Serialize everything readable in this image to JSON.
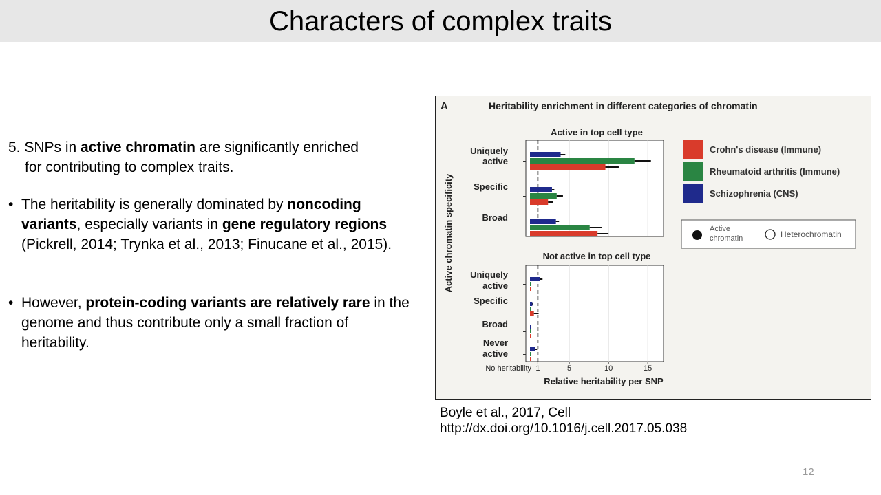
{
  "title": "Characters of complex traits",
  "point5": {
    "prefix": "5. SNPs in ",
    "bold": "active chromatin",
    "suffix": " are significantly enriched",
    "line2": "for contributing to complex traits."
  },
  "bullet1": {
    "marker": "•",
    "t1": "The heritability is generally dominated by ",
    "b1": "noncoding variants",
    "t2": ", especially variants in ",
    "b2": "gene regulatory regions",
    "t3": " (Pickrell, 2014; Trynka et al., 2013; Finucane et al., 2015)."
  },
  "bullet2": {
    "marker": "•",
    "t1": "However, ",
    "b1": "protein-coding variants are relatively rare",
    "t2": " in the genome and thus contribute only a small fraction of heritability."
  },
  "citation": {
    "line1": "Boyle et al., 2017, Cell",
    "line2": "http://dx.doi.org/10.1016/j.cell.2017.05.038"
  },
  "page_number": "12",
  "chart_data": {
    "type": "bar",
    "orientation": "horizontal",
    "panel_letter": "A",
    "title": "Heritability enrichment in different categories of chromatin",
    "ylabel": "Active chromatin specificity",
    "xlabel": "Relative heritability per SNP",
    "xlim": [
      0,
      17
    ],
    "x_ticks": [
      1,
      5,
      10,
      15
    ],
    "x_tick_labels": [
      "1",
      "5",
      "10",
      "15"
    ],
    "x_zero_label": "No heritability",
    "reference_line": 1,
    "grid": true,
    "legend_position": "right",
    "series_colors": [
      "#d93b2b",
      "#2a8543",
      "#1f2a8c"
    ],
    "series": [
      {
        "name": "Crohn's disease (Immune)"
      },
      {
        "name": "Rheumatoid arthritis (Immune)"
      },
      {
        "name": "Schizophrenia (CNS)"
      }
    ],
    "marker_legend": [
      {
        "label": "Active chromatin",
        "filled": true
      },
      {
        "label": "Heterochromatin",
        "filled": false
      }
    ],
    "panels": [
      {
        "title": "Active in top cell type",
        "categories": [
          "Uniquely active",
          "Specific",
          "Broad"
        ],
        "values": {
          "Crohn's disease (Immune)": [
            9.6,
            2.3,
            8.6
          ],
          "Rheumatoid arthritis (Immune)": [
            13.3,
            3.4,
            7.6
          ],
          "Schizophrenia (CNS)": [
            3.9,
            2.8,
            3.3
          ]
        },
        "errors": {
          "Crohn's disease (Immune)": [
            1.7,
            0.6,
            1.4
          ],
          "Rheumatoid arthritis (Immune)": [
            2.1,
            0.8,
            1.6
          ],
          "Schizophrenia (CNS)": [
            0.6,
            0.3,
            0.4
          ]
        }
      },
      {
        "title": "Not active in top cell type",
        "categories": [
          "Uniquely active",
          "Specific",
          "Broad",
          "Never active"
        ],
        "values": {
          "Crohn's disease (Immune)": [
            0.1,
            0.5,
            0.1,
            0.1
          ],
          "Rheumatoid arthritis (Immune)": [
            0.1,
            0.1,
            0.1,
            0.1
          ],
          "Schizophrenia (CNS)": [
            1.3,
            0.3,
            0.15,
            0.7
          ]
        },
        "errors": {
          "Crohn's disease (Immune)": [
            0,
            0.6,
            0,
            0
          ],
          "Rheumatoid arthritis (Immune)": [
            0,
            0,
            0,
            0
          ],
          "Schizophrenia (CNS)": [
            0.3,
            0.1,
            0,
            0.2
          ]
        }
      }
    ]
  }
}
